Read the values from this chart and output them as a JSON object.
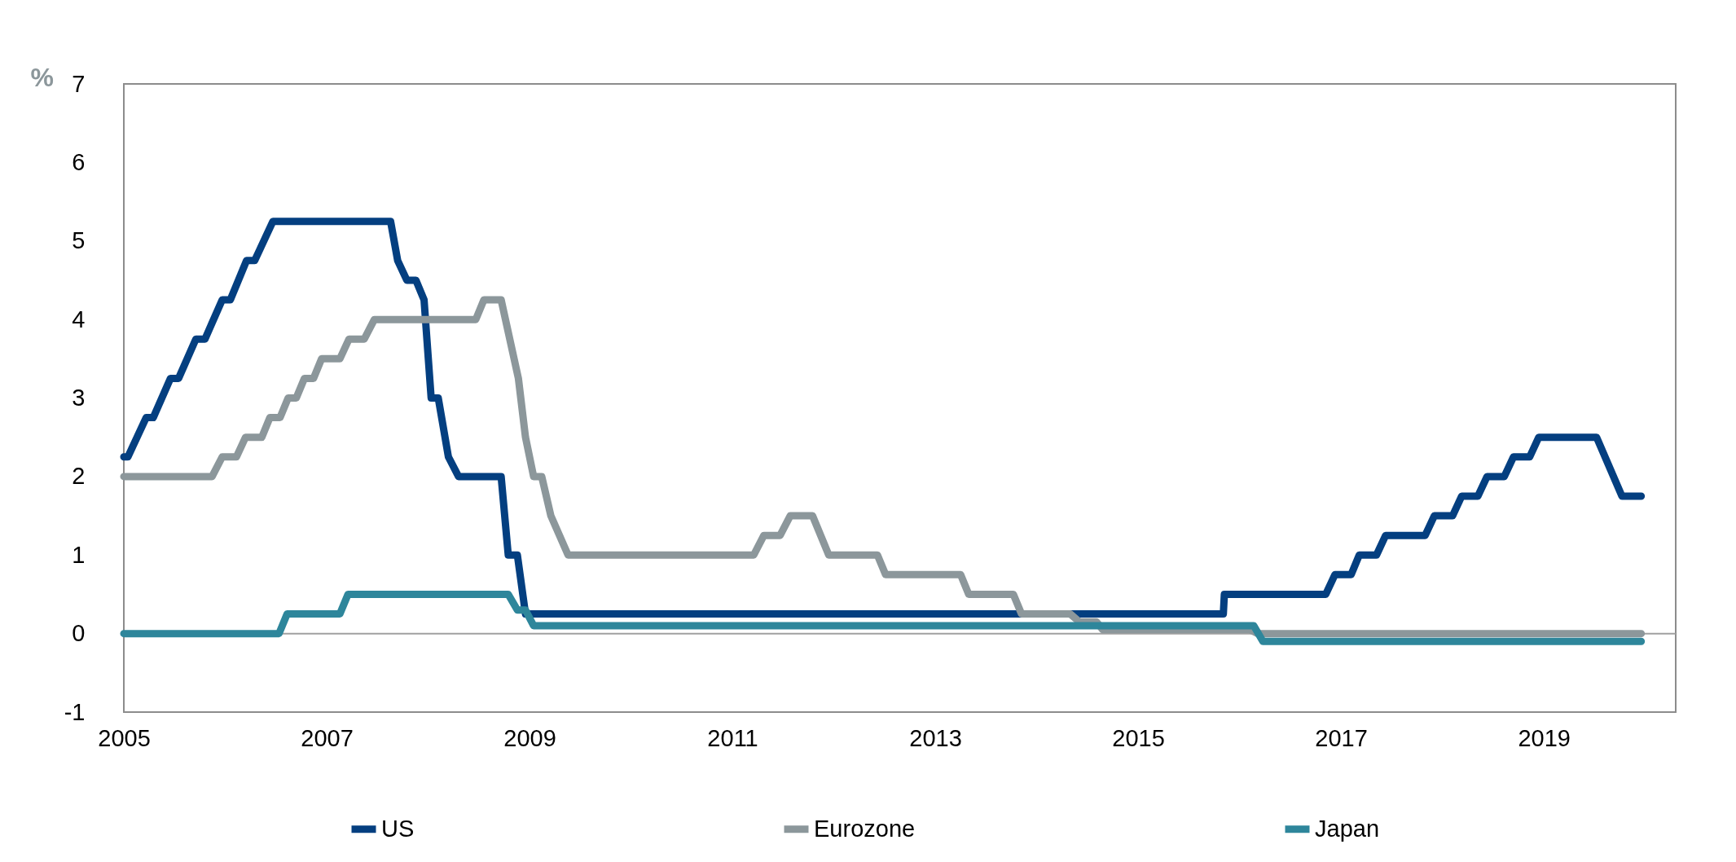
{
  "chart_data": {
    "type": "line",
    "ylabel": "%",
    "xlim": [
      2005,
      2020.3
    ],
    "xticks": [
      2005,
      2007,
      2009,
      2011,
      2013,
      2015,
      2017,
      2019
    ],
    "ylim": [
      -1,
      7
    ],
    "yticks": [
      -1,
      0,
      1,
      2,
      3,
      4,
      5,
      6,
      7
    ],
    "grid": false,
    "legend": "bottom",
    "marker": "none",
    "line_style": "solid",
    "ref_lines": [
      {
        "axis": "y",
        "value": 0,
        "color": "#a0a0a0"
      }
    ],
    "series": [
      {
        "name": "US",
        "color": "#043f80",
        "x": [
          2005,
          2005.04,
          2005.22,
          2005.29,
          2005.46,
          2005.54,
          2005.71,
          2005.8,
          2005.97,
          2006.05,
          2006.21,
          2006.29,
          2006.47,
          2007.63,
          2007.7,
          2007.79,
          2007.88,
          2007.96,
          2008.03,
          2008.1,
          2008.2,
          2008.3,
          2008.72,
          2008.79,
          2008.88,
          2008.96,
          2015.84,
          2015.85,
          2016.85,
          2016.94,
          2017.1,
          2017.18,
          2017.35,
          2017.44,
          2017.83,
          2017.92,
          2018.1,
          2018.19,
          2018.35,
          2018.44,
          2018.61,
          2018.7,
          2018.86,
          2018.95,
          2019.52,
          2019.77,
          2019.96
        ],
        "values": [
          2.25,
          2.25,
          2.75,
          2.75,
          3.25,
          3.25,
          3.75,
          3.75,
          4.25,
          4.25,
          4.75,
          4.75,
          5.25,
          5.25,
          4.75,
          4.5,
          4.5,
          4.25,
          3,
          3,
          2.25,
          2,
          2,
          1,
          1,
          0.25,
          0.25,
          0.5,
          0.5,
          0.75,
          0.75,
          1,
          1,
          1.25,
          1.25,
          1.5,
          1.5,
          1.75,
          1.75,
          2,
          2,
          2.25,
          2.25,
          2.5,
          2.5,
          1.75,
          1.75
        ]
      },
      {
        "name": "Eurozone",
        "color": "#8c979b",
        "x": [
          2005,
          2005.87,
          2005.97,
          2006.11,
          2006.2,
          2006.36,
          2006.44,
          2006.54,
          2006.62,
          2006.7,
          2006.78,
          2006.87,
          2006.95,
          2007.13,
          2007.22,
          2007.37,
          2007.47,
          2008.47,
          2008.55,
          2008.72,
          2008.89,
          2008.96,
          2009.04,
          2009.12,
          2009.21,
          2009.38,
          2011.21,
          2011.31,
          2011.47,
          2011.57,
          2011.79,
          2011.95,
          2012.43,
          2012.51,
          2013.25,
          2013.33,
          2013.77,
          2013.85,
          2014.33,
          2014.42,
          2014.59,
          2014.65,
          2016.1,
          2016.18,
          2019.96
        ],
        "values": [
          2,
          2,
          2.25,
          2.25,
          2.5,
          2.5,
          2.75,
          2.75,
          3,
          3,
          3.25,
          3.25,
          3.5,
          3.5,
          3.75,
          3.75,
          4,
          4,
          4.25,
          4.25,
          3.25,
          2.5,
          2,
          2,
          1.5,
          1,
          1,
          1.25,
          1.25,
          1.5,
          1.5,
          1,
          1,
          0.75,
          0.75,
          0.5,
          0.5,
          0.25,
          0.25,
          0.15,
          0.15,
          0.05,
          0.05,
          0,
          0
        ]
      },
      {
        "name": "Japan",
        "color": "#2e869b",
        "x": [
          2005,
          2006.53,
          2006.61,
          2007.13,
          2007.21,
          2008.79,
          2008.88,
          2008.96,
          2009.04,
          2016.14,
          2016.23,
          2019.96
        ],
        "values": [
          0,
          0,
          0.25,
          0.25,
          0.5,
          0.5,
          0.3,
          0.3,
          0.1,
          0.1,
          -0.1,
          -0.1
        ]
      }
    ]
  }
}
